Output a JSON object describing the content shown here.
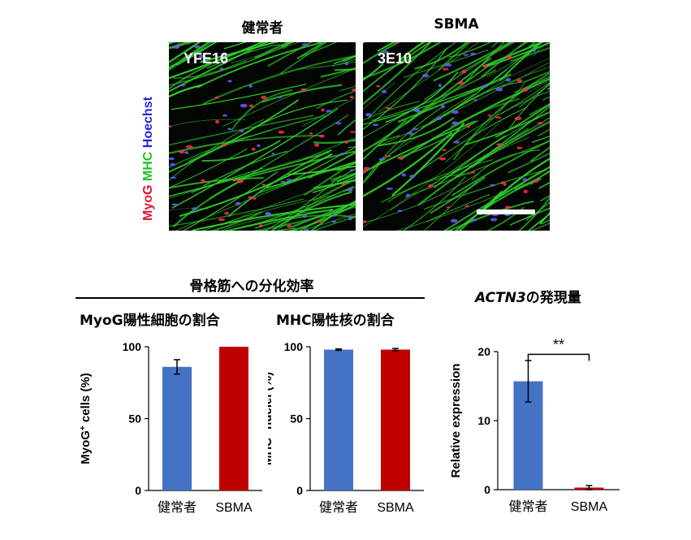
{
  "micrographs": {
    "column_labels": [
      "健常者",
      "SBMA"
    ],
    "left_tag": "YFE16",
    "right_tag": "3E10",
    "stain_legend": [
      {
        "label": "MyoG",
        "color": "#e8102a"
      },
      {
        "label": "MHC",
        "color": "#22c21f"
      },
      {
        "label": "Hoechst",
        "color": "#2222dd"
      }
    ],
    "colors": {
      "fibers": "#2fd12a",
      "nuclei_red": "#ff2a55",
      "nuclei_blue": "#6a5cff",
      "scale_bar": "#ffffff"
    }
  },
  "section_title": "骨格筋への分化効率",
  "chart_data": [
    {
      "type": "bar",
      "title": "MyoG陽性細胞の割合",
      "ylabel_main": "MyoG",
      "ylabel_sup": "+",
      "ylabel_rest": " cells (%)",
      "categories": [
        "健常者",
        "SBMA"
      ],
      "values": [
        86,
        100
      ],
      "errors": [
        5,
        0
      ],
      "colors": [
        "#4472c4",
        "#c00000"
      ],
      "ylim": [
        0,
        100
      ],
      "yticks": [
        "0",
        "50",
        "100"
      ]
    },
    {
      "type": "bar",
      "title": "MHC陽性核の割合",
      "ylabel_main": "MHC",
      "ylabel_sup": "+",
      "ylabel_rest": " nuclei (%)",
      "categories": [
        "健常者",
        "SBMA"
      ],
      "values": [
        98,
        98
      ],
      "errors": [
        0.5,
        0.8
      ],
      "colors": [
        "#4472c4",
        "#c00000"
      ],
      "ylim": [
        0,
        100
      ],
      "yticks": [
        "0",
        "50",
        "100"
      ]
    },
    {
      "type": "bar",
      "title_italic": "ACTN3",
      "title_rest": "の発現量",
      "ylabel": "Relative expression",
      "categories": [
        "健常者",
        "SBMA"
      ],
      "values": [
        15.7,
        0.3
      ],
      "errors": [
        3,
        0.3
      ],
      "colors": [
        "#4472c4",
        "#c00000"
      ],
      "ylim": [
        0,
        20
      ],
      "yticks": [
        "0",
        "10",
        "20"
      ],
      "significance": "**"
    }
  ]
}
